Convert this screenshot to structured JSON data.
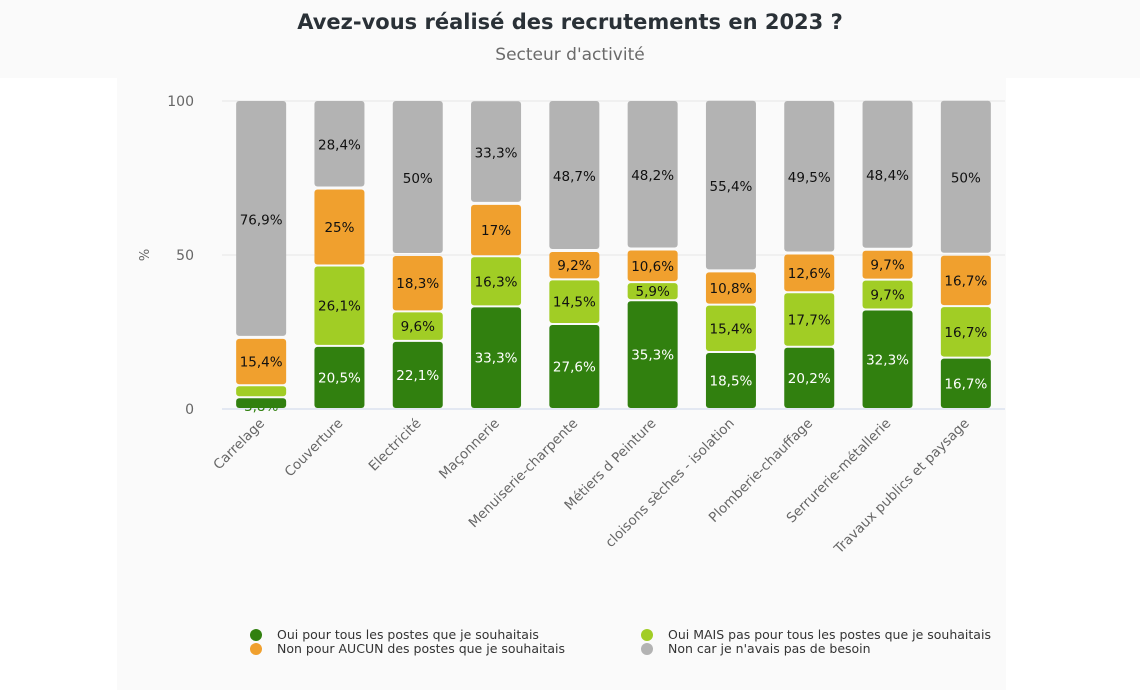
{
  "title": "Avez-vous réalisé des recrutements en 2023 ?",
  "subtitle": "Secteur d'activité",
  "chart_data": {
    "type": "bar",
    "stacked": true,
    "title": "Avez-vous réalisé des recrutements en 2023 ?",
    "subtitle": "Secteur d'activité",
    "xlabel": "",
    "ylabel": "%",
    "ylim": [
      0,
      100
    ],
    "yticks": [
      "0",
      "50",
      "100"
    ],
    "grid": true,
    "legend_position": "bottom",
    "categories": [
      "Carrelage",
      "Couverture",
      "Electricité",
      "Maçonnerie",
      "Menuiserie-charpente",
      "Métiers d   Peinture",
      "cloisons sèches - isolation",
      "Plomberie-chauffage",
      "Serrurerie-métallerie",
      "Travaux publics et paysage"
    ],
    "series": [
      {
        "name": "Oui pour tous les postes que je souhaitais",
        "color": "#31800f",
        "label_color": "#ffffff",
        "values": [
          3.8,
          20.5,
          22.1,
          33.3,
          27.6,
          35.3,
          18.5,
          20.2,
          32.3,
          16.7
        ],
        "labels": [
          "3,8%",
          "20,5%",
          "22,1%",
          "33,3%",
          "27,6%",
          "35,3%",
          "18,5%",
          "20,2%",
          "32,3%",
          "16,7%"
        ]
      },
      {
        "name": "Oui MAIS pas pour tous les postes que je souhaitais",
        "color": "#a1cd25",
        "label_color": "#111111",
        "values": [
          3.9,
          26.1,
          9.6,
          16.3,
          14.5,
          5.9,
          15.4,
          17.7,
          9.7,
          16.7
        ],
        "labels": [
          "",
          "26,1%",
          "9,6%",
          "16,3%",
          "14,5%",
          "5,9%",
          "15,4%",
          "17,7%",
          "9,7%",
          "16,7%"
        ]
      },
      {
        "name": "Non pour AUCUN des postes que je souhaitais",
        "color": "#f0a02e",
        "label_color": "#111111",
        "values": [
          15.4,
          25,
          18.3,
          17,
          9.2,
          10.6,
          10.8,
          12.6,
          9.7,
          16.7
        ],
        "labels": [
          "15,4%",
          "25%",
          "18,3%",
          "17%",
          "9,2%",
          "10,6%",
          "10,8%",
          "12,6%",
          "9,7%",
          "16,7%"
        ]
      },
      {
        "name": "Non car je n'avais pas de besoin",
        "color": "#b3b3b3",
        "label_color": "#111111",
        "values": [
          76.9,
          28.4,
          50,
          33.3,
          48.7,
          48.2,
          55.4,
          49.5,
          48.4,
          50
        ],
        "labels": [
          "76,9%",
          "28,4%",
          "50%",
          "33,3%",
          "48,7%",
          "48,2%",
          "55,4%",
          "49,5%",
          "48,4%",
          "50%"
        ]
      }
    ]
  },
  "legend": [
    {
      "label": "Oui pour tous les postes que je souhaitais",
      "color": "#31800f"
    },
    {
      "label": "Oui MAIS pas pour tous les postes que je souhaitais",
      "color": "#a1cd25"
    },
    {
      "label": "Non pour AUCUN des postes que je souhaitais",
      "color": "#f0a02e"
    },
    {
      "label": "Non car je n'avais pas de besoin",
      "color": "#b3b3b3"
    }
  ]
}
